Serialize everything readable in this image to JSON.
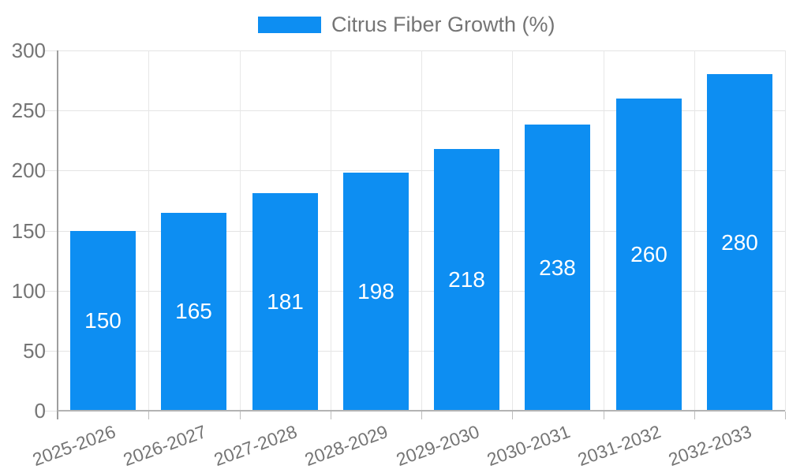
{
  "legend": {
    "label": "Citrus Fiber Growth (%)"
  },
  "colors": {
    "bar": "#0d8ef2",
    "axis_text": "#757575",
    "grid": "#e6e6e6",
    "axis_line_y": "#9e9e9e",
    "axis_line_x": "#b3b3b3",
    "value_label": "#ffffff",
    "background": "#ffffff"
  },
  "chart_data": {
    "type": "bar",
    "title": "",
    "xlabel": "",
    "ylabel": "",
    "categories": [
      "2025-2026",
      "2026-2027",
      "2027-2028",
      "2028-2029",
      "2029-2030",
      "2030-2031",
      "2031-2032",
      "2032-2033"
    ],
    "values": [
      150,
      165,
      181,
      198,
      218,
      238,
      260,
      280
    ],
    "series": [
      {
        "name": "Citrus Fiber Growth (%)",
        "values": [
          150,
          165,
          181,
          198,
          218,
          238,
          260,
          280
        ]
      }
    ],
    "ylim": [
      0,
      300
    ],
    "yticks": [
      0,
      50,
      100,
      150,
      200,
      250,
      300
    ],
    "grid": true,
    "legend_position": "top",
    "value_labels": "inside-center"
  }
}
